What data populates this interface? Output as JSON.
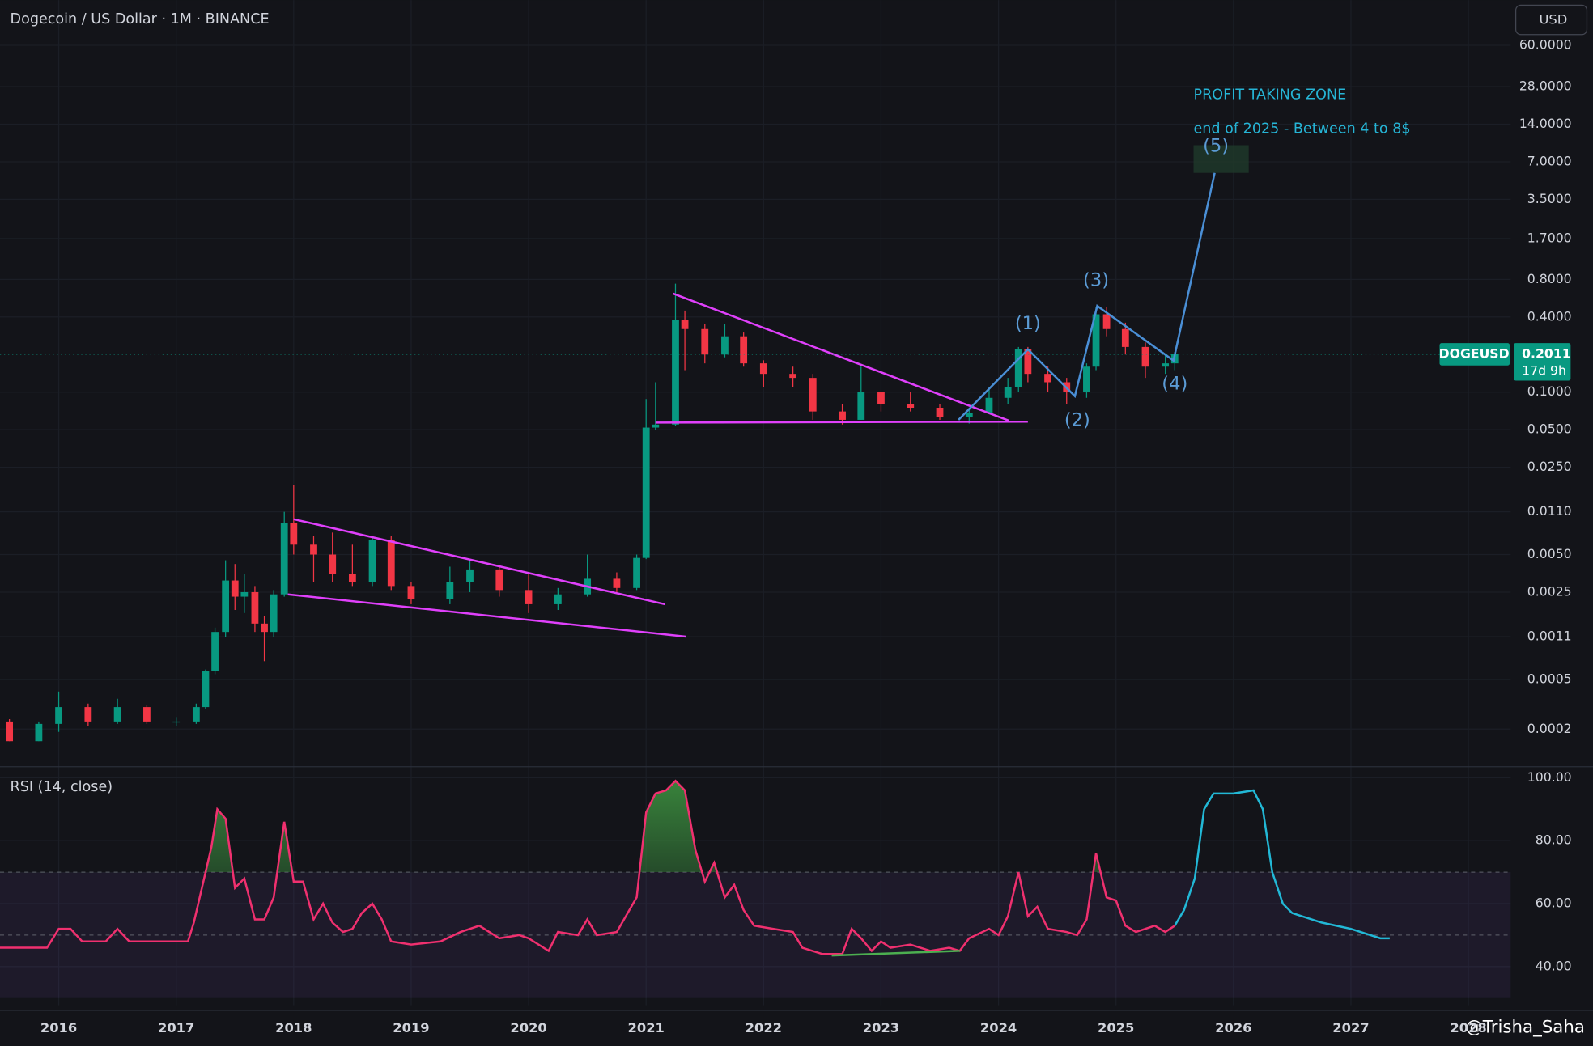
{
  "header": {
    "title": "Dogecoin / US Dollar · 1M · BINANCE",
    "currency_button": "USD"
  },
  "watermark": "@Trisha_Saha",
  "last_price": {
    "symbol": "DOGEUSD",
    "value": 0.2011,
    "countdown": "17d 9h",
    "color": "#089981"
  },
  "chart_data": [
    {
      "type": "candlestick",
      "log_scale": true,
      "grid": true,
      "up_color": "#089981",
      "down_color": "#f23645",
      "xlim": [
        2015.5,
        2028.36
      ],
      "xticks": [
        2016,
        2017,
        2018,
        2019,
        2020,
        2021,
        2022,
        2023,
        2024,
        2025,
        2026,
        2027,
        2028
      ],
      "ylim": [
        0.0001,
        138
      ],
      "yticks": [
        {
          "value": 60,
          "label": "60.0000"
        },
        {
          "value": 28,
          "label": "28.0000"
        },
        {
          "value": 14,
          "label": "14.0000"
        },
        {
          "value": 7,
          "label": "7.0000"
        },
        {
          "value": 3.5,
          "label": "3.5000"
        },
        {
          "value": 1.7,
          "label": "1.7000"
        },
        {
          "value": 0.8,
          "label": "0.8000"
        },
        {
          "value": 0.4,
          "label": "0.4000"
        },
        {
          "value": 0.1,
          "label": "0.1000"
        },
        {
          "value": 0.05,
          "label": "0.0500"
        },
        {
          "value": 0.025,
          "label": "0.0250"
        },
        {
          "value": 0.011,
          "label": "0.0110"
        },
        {
          "value": 0.005,
          "label": "0.0050"
        },
        {
          "value": 0.0025,
          "label": "0.0025"
        },
        {
          "value": 0.0011,
          "label": "0.0011"
        },
        {
          "value": 0.0005,
          "label": "0.0005"
        },
        {
          "value": 0.0002,
          "label": "0.0002"
        }
      ],
      "x": [
        2015.58,
        2015.83,
        2016.0,
        2016.25,
        2016.5,
        2016.75,
        2017.0,
        2017.17,
        2017.25,
        2017.33,
        2017.42,
        2017.5,
        2017.58,
        2017.67,
        2017.75,
        2017.83,
        2017.92,
        2018.0,
        2018.17,
        2018.33,
        2018.5,
        2018.67,
        2018.83,
        2019.0,
        2019.33,
        2019.5,
        2019.75,
        2020.0,
        2020.25,
        2020.5,
        2020.75,
        2020.92,
        2021.0,
        2021.08,
        2021.25,
        2021.33,
        2021.5,
        2021.67,
        2021.83,
        2022.0,
        2022.25,
        2022.42,
        2022.67,
        2022.83,
        2023.0,
        2023.25,
        2023.5,
        2023.75,
        2023.92,
        2024.08,
        2024.17,
        2024.25,
        2024.42,
        2024.58,
        2024.75,
        2024.83,
        2024.92,
        2025.08,
        2025.25,
        2025.42,
        2025.5
      ],
      "open": [
        0.00023,
        0.00016,
        0.00022,
        0.0003,
        0.00023,
        0.0003,
        0.00023,
        0.00023,
        0.0003,
        0.00058,
        0.0012,
        0.0031,
        0.0023,
        0.0025,
        0.0014,
        0.0012,
        0.0024,
        0.009,
        0.006,
        0.005,
        0.0035,
        0.003,
        0.0065,
        0.0028,
        0.0022,
        0.003,
        0.0038,
        0.0026,
        0.002,
        0.0024,
        0.0032,
        0.0027,
        0.0047,
        0.052,
        0.055,
        0.38,
        0.32,
        0.2,
        0.28,
        0.17,
        0.14,
        0.13,
        0.07,
        0.06,
        0.1,
        0.08,
        0.075,
        0.063,
        0.068,
        0.09,
        0.11,
        0.22,
        0.14,
        0.12,
        0.1,
        0.16,
        0.42,
        0.32,
        0.23,
        0.16,
        0.17
      ],
      "high": [
        0.00024,
        0.00023,
        0.0004,
        0.00032,
        0.00035,
        0.00031,
        0.00025,
        0.00032,
        0.0006,
        0.0013,
        0.0045,
        0.0042,
        0.0035,
        0.0028,
        0.0016,
        0.0026,
        0.011,
        0.018,
        0.007,
        0.0075,
        0.006,
        0.007,
        0.007,
        0.003,
        0.004,
        0.0046,
        0.004,
        0.0035,
        0.0027,
        0.005,
        0.0036,
        0.005,
        0.088,
        0.12,
        0.74,
        0.45,
        0.35,
        0.35,
        0.3,
        0.18,
        0.16,
        0.14,
        0.08,
        0.16,
        0.1,
        0.1,
        0.08,
        0.075,
        0.11,
        0.13,
        0.23,
        0.23,
        0.16,
        0.13,
        0.17,
        0.48,
        0.48,
        0.36,
        0.25,
        0.2,
        0.21
      ],
      "low": [
        0.00016,
        0.00016,
        0.00019,
        0.00021,
        0.00022,
        0.00022,
        0.00021,
        0.00022,
        0.00029,
        0.00055,
        0.0011,
        0.0018,
        0.0017,
        0.0012,
        0.0007,
        0.0011,
        0.0023,
        0.005,
        0.003,
        0.003,
        0.0028,
        0.0028,
        0.0026,
        0.002,
        0.002,
        0.0025,
        0.0023,
        0.0017,
        0.0018,
        0.0023,
        0.0025,
        0.0026,
        0.0046,
        0.05,
        0.054,
        0.15,
        0.17,
        0.19,
        0.16,
        0.11,
        0.11,
        0.06,
        0.055,
        0.06,
        0.07,
        0.07,
        0.06,
        0.056,
        0.067,
        0.08,
        0.1,
        0.12,
        0.1,
        0.08,
        0.09,
        0.15,
        0.28,
        0.2,
        0.13,
        0.14,
        0.15
      ],
      "close": [
        0.00016,
        0.00022,
        0.0003,
        0.00023,
        0.0003,
        0.00023,
        0.00023,
        0.0003,
        0.00058,
        0.0012,
        0.0031,
        0.0023,
        0.0025,
        0.0014,
        0.0012,
        0.0024,
        0.009,
        0.006,
        0.005,
        0.0035,
        0.003,
        0.0065,
        0.0028,
        0.0022,
        0.003,
        0.0038,
        0.0026,
        0.002,
        0.0024,
        0.0032,
        0.0027,
        0.0047,
        0.052,
        0.055,
        0.38,
        0.32,
        0.2,
        0.28,
        0.17,
        0.14,
        0.13,
        0.07,
        0.06,
        0.1,
        0.08,
        0.075,
        0.063,
        0.068,
        0.09,
        0.11,
        0.22,
        0.14,
        0.12,
        0.1,
        0.16,
        0.42,
        0.32,
        0.23,
        0.16,
        0.17,
        0.2011
      ],
      "trendlines": [
        {
          "color": "#e040fb",
          "points": [
            [
              2018.0,
              0.0096
            ],
            [
              2021.16,
              0.002
            ]
          ]
        },
        {
          "color": "#e040fb",
          "points": [
            [
              2017.95,
              0.0024
            ],
            [
              2021.34,
              0.0011
            ]
          ]
        },
        {
          "color": "#e040fb",
          "points": [
            [
              2021.23,
              0.615
            ],
            [
              2024.09,
              0.059
            ]
          ]
        },
        {
          "color": "#e040fb",
          "points": [
            [
              2021.08,
              0.057
            ],
            [
              2024.25,
              0.058
            ]
          ]
        }
      ],
      "wave": {
        "color": "#4a8fd6",
        "points": [
          [
            2023.66,
            0.06
          ],
          [
            2024.25,
            0.22
          ],
          [
            2024.65,
            0.093
          ],
          [
            2024.84,
            0.49
          ],
          [
            2025.49,
            0.179
          ],
          [
            2025.84,
            5.7
          ]
        ]
      },
      "zone": {
        "color": "#1f3a2a",
        "x": [
          2025.66,
          2026.13
        ],
        "y": [
          5.7,
          9.5
        ]
      },
      "annotations": [
        {
          "text": "(1)",
          "x": 2024.25,
          "y": 0.35,
          "color": "#5b9bd5"
        },
        {
          "text": "(2)",
          "x": 2024.67,
          "y": 0.059,
          "color": "#5b9bd5"
        },
        {
          "text": "(3)",
          "x": 2024.83,
          "y": 0.78,
          "color": "#5b9bd5"
        },
        {
          "text": "(4)",
          "x": 2025.5,
          "y": 0.116,
          "color": "#5b9bd5"
        },
        {
          "text": "(5)",
          "x": 2025.85,
          "y": 9.3,
          "color": "#5b9bd5"
        },
        {
          "text": "PROFIT TAKING ZONE",
          "x": 2025.66,
          "y": 24,
          "color": "#26b5d6",
          "anchor": "start"
        },
        {
          "text": "end of 2025 - Between 4 to 8$",
          "x": 2025.66,
          "y": 12.8,
          "color": "#26b5d6",
          "anchor": "start"
        }
      ]
    },
    {
      "type": "line",
      "title": "RSI (14, close)",
      "grid": true,
      "xlim": [
        2015.5,
        2028.36
      ],
      "ylim": [
        27.7,
        103.5
      ],
      "yticks": [
        {
          "value": 100,
          "label": "100.00"
        },
        {
          "value": 80,
          "label": "80.00"
        },
        {
          "value": 60,
          "label": "60.00"
        },
        {
          "value": 40,
          "label": "40.00"
        }
      ],
      "bands": {
        "upper": 70,
        "middle": 50,
        "lower": 30
      },
      "series": [
        {
          "color": "#f0306f",
          "overbought_fill": "#3c8f3f",
          "x": [
            2015.5,
            2015.9,
            2016.0,
            2016.1,
            2016.2,
            2016.4,
            2016.5,
            2016.6,
            2016.8,
            2017.0,
            2017.1,
            2017.15,
            2017.3,
            2017.35,
            2017.42,
            2017.5,
            2017.58,
            2017.67,
            2017.75,
            2017.83,
            2017.92,
            2018.0,
            2018.08,
            2018.17,
            2018.25,
            2018.33,
            2018.42,
            2018.5,
            2018.58,
            2018.67,
            2018.75,
            2018.83,
            2019.0,
            2019.25,
            2019.42,
            2019.58,
            2019.75,
            2019.92,
            2020.0,
            2020.17,
            2020.25,
            2020.42,
            2020.5,
            2020.58,
            2020.75,
            2020.92,
            2021.0,
            2021.08,
            2021.17,
            2021.25,
            2021.33,
            2021.42,
            2021.5,
            2021.58,
            2021.67,
            2021.75,
            2021.83,
            2021.92,
            2022.08,
            2022.25,
            2022.33,
            2022.5,
            2022.67,
            2022.75,
            2022.83,
            2022.92,
            2023.0,
            2023.08,
            2023.25,
            2023.42,
            2023.58,
            2023.67,
            2023.75,
            2023.92,
            2024.0,
            2024.08,
            2024.17,
            2024.25,
            2024.33,
            2024.42,
            2024.58,
            2024.67,
            2024.75,
            2024.83,
            2024.92,
            2025.0,
            2025.08,
            2025.17,
            2025.33,
            2025.42,
            2025.5
          ],
          "values": [
            46,
            46,
            52,
            52,
            48,
            48,
            52,
            48,
            48,
            48,
            48,
            54,
            78,
            90,
            87,
            65,
            68,
            55,
            55,
            62,
            86,
            67,
            67,
            55,
            60,
            54,
            51,
            52,
            57,
            60,
            55,
            48,
            47,
            48,
            51,
            53,
            49,
            50,
            49,
            45,
            51,
            50,
            55,
            50,
            51,
            62,
            89,
            95,
            96,
            99,
            96,
            77,
            67,
            73,
            62,
            66,
            58,
            53,
            52,
            51,
            46,
            44,
            44,
            52,
            49,
            45,
            48,
            46,
            47,
            45,
            46,
            45,
            49,
            52,
            50,
            56,
            70,
            56,
            59,
            52,
            51,
            50,
            55,
            76,
            62,
            61,
            53,
            51,
            53,
            51,
            53
          ]
        },
        {
          "color": "#22b8d6",
          "x": [
            2025.5,
            2025.58,
            2025.67,
            2025.75,
            2025.83,
            2026.0,
            2026.17,
            2026.25,
            2026.33,
            2026.42,
            2026.5,
            2026.75,
            2027.0,
            2027.25,
            2027.33
          ],
          "values": [
            53,
            58,
            68,
            90,
            95,
            95,
            96,
            90,
            70,
            60,
            57,
            54,
            52,
            49,
            49
          ]
        },
        {
          "color": "#4caf50",
          "x": [
            2022.58,
            2023.67
          ],
          "values": [
            43.5,
            45
          ]
        }
      ]
    }
  ]
}
